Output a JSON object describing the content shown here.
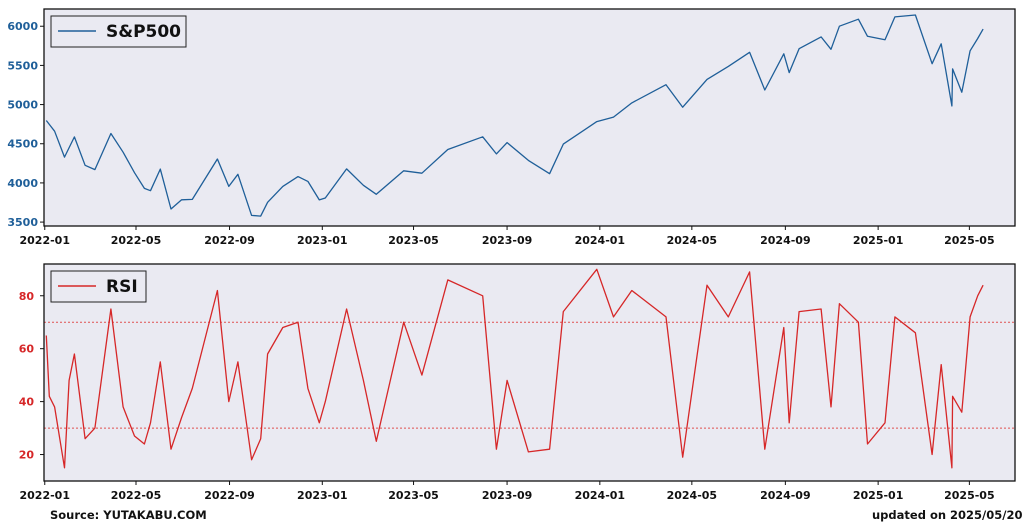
{
  "footer": {
    "source": "Source: YUTAKABU.COM",
    "updated": "updated on 2025/05/20"
  },
  "style": {
    "panel_bg": "#eaeaf2",
    "sp_color": "#1f5f99",
    "rsi_color": "#d62728",
    "threshold_color": "#e05050"
  },
  "chart_data": [
    {
      "type": "line",
      "x_start": "2021-12-31",
      "x_end": "2025-06-30",
      "x_ticks": [
        "2022-01",
        "2022-05",
        "2022-09",
        "2023-01",
        "2023-05",
        "2023-09",
        "2024-01",
        "2024-05",
        "2024-09",
        "2025-01",
        "2025-05"
      ],
      "ylim": [
        3450,
        6220
      ],
      "y_ticks": [
        3500,
        4000,
        4500,
        5000,
        5500,
        6000
      ],
      "legend_position": "top-left",
      "grid": false,
      "series": [
        {
          "name": "S&P500",
          "points": [
            [
              "2022-01-03",
              4797
            ],
            [
              "2022-01-14",
              4660
            ],
            [
              "2022-01-27",
              4330
            ],
            [
              "2022-02-09",
              4587
            ],
            [
              "2022-02-23",
              4225
            ],
            [
              "2022-03-08",
              4170
            ],
            [
              "2022-03-29",
              4631
            ],
            [
              "2022-04-14",
              4392
            ],
            [
              "2022-04-29",
              4131
            ],
            [
              "2022-05-12",
              3930
            ],
            [
              "2022-05-20",
              3901
            ],
            [
              "2022-06-02",
              4176
            ],
            [
              "2022-06-16",
              3667
            ],
            [
              "2022-06-30",
              3785
            ],
            [
              "2022-07-14",
              3790
            ],
            [
              "2022-08-16",
              4305
            ],
            [
              "2022-08-31",
              3955
            ],
            [
              "2022-09-12",
              4110
            ],
            [
              "2022-09-30",
              3585
            ],
            [
              "2022-10-12",
              3577
            ],
            [
              "2022-10-21",
              3752
            ],
            [
              "2022-11-10",
              3956
            ],
            [
              "2022-11-30",
              4080
            ],
            [
              "2022-12-13",
              4019
            ],
            [
              "2022-12-28",
              3783
            ],
            [
              "2023-01-05",
              3808
            ],
            [
              "2023-02-02",
              4179
            ],
            [
              "2023-02-24",
              3970
            ],
            [
              "2023-03-13",
              3855
            ],
            [
              "2023-04-18",
              4154
            ],
            [
              "2023-05-12",
              4124
            ],
            [
              "2023-06-15",
              4426
            ],
            [
              "2023-07-31",
              4589
            ],
            [
              "2023-08-18",
              4370
            ],
            [
              "2023-09-01",
              4515
            ],
            [
              "2023-09-29",
              4288
            ],
            [
              "2023-10-27",
              4117
            ],
            [
              "2023-11-14",
              4495
            ],
            [
              "2023-12-28",
              4783
            ],
            [
              "2024-01-19",
              4840
            ],
            [
              "2024-02-12",
              5021
            ],
            [
              "2024-03-28",
              5254
            ],
            [
              "2024-04-19",
              4967
            ],
            [
              "2024-05-21",
              5321
            ],
            [
              "2024-06-18",
              5487
            ],
            [
              "2024-07-16",
              5667
            ],
            [
              "2024-08-05",
              5186
            ],
            [
              "2024-08-30",
              5648
            ],
            [
              "2024-09-06",
              5408
            ],
            [
              "2024-09-19",
              5713
            ],
            [
              "2024-10-18",
              5864
            ],
            [
              "2024-10-31",
              5705
            ],
            [
              "2024-11-11",
              6001
            ],
            [
              "2024-12-06",
              6090
            ],
            [
              "2024-12-18",
              5872
            ],
            [
              "2025-01-10",
              5827
            ],
            [
              "2025-01-23",
              6119
            ],
            [
              "2025-02-19",
              6144
            ],
            [
              "2025-03-13",
              5522
            ],
            [
              "2025-03-25",
              5776
            ],
            [
              "2025-04-08",
              4982
            ],
            [
              "2025-04-09",
              5456
            ],
            [
              "2025-04-21",
              5158
            ],
            [
              "2025-05-02",
              5687
            ],
            [
              "2025-05-12",
              5844
            ],
            [
              "2025-05-19",
              5963
            ]
          ]
        }
      ]
    },
    {
      "type": "line",
      "x_start": "2021-12-31",
      "x_end": "2025-06-30",
      "x_ticks": [
        "2022-01",
        "2022-05",
        "2022-09",
        "2023-01",
        "2023-05",
        "2023-09",
        "2024-01",
        "2024-05",
        "2024-09",
        "2025-01",
        "2025-05"
      ],
      "ylim": [
        10,
        92
      ],
      "y_ticks": [
        20,
        40,
        60,
        80
      ],
      "thresholds": [
        70,
        30
      ],
      "legend_position": "top-left",
      "grid": false,
      "series": [
        {
          "name": "RSI",
          "points": [
            [
              "2022-01-03",
              65
            ],
            [
              "2022-01-07",
              42
            ],
            [
              "2022-01-14",
              38
            ],
            [
              "2022-01-27",
              15
            ],
            [
              "2022-02-02",
              48
            ],
            [
              "2022-02-09",
              58
            ],
            [
              "2022-02-23",
              26
            ],
            [
              "2022-03-08",
              30
            ],
            [
              "2022-03-29",
              75
            ],
            [
              "2022-04-14",
              38
            ],
            [
              "2022-04-29",
              27
            ],
            [
              "2022-05-12",
              24
            ],
            [
              "2022-05-20",
              32
            ],
            [
              "2022-06-02",
              55
            ],
            [
              "2022-06-16",
              22
            ],
            [
              "2022-06-30",
              34
            ],
            [
              "2022-07-14",
              45
            ],
            [
              "2022-08-16",
              82
            ],
            [
              "2022-08-31",
              40
            ],
            [
              "2022-09-12",
              55
            ],
            [
              "2022-09-30",
              18
            ],
            [
              "2022-10-12",
              26
            ],
            [
              "2022-10-21",
              58
            ],
            [
              "2022-11-10",
              68
            ],
            [
              "2022-11-30",
              70
            ],
            [
              "2022-12-13",
              45
            ],
            [
              "2022-12-28",
              32
            ],
            [
              "2023-01-05",
              40
            ],
            [
              "2023-02-02",
              75
            ],
            [
              "2023-02-24",
              48
            ],
            [
              "2023-03-13",
              25
            ],
            [
              "2023-04-18",
              70
            ],
            [
              "2023-05-12",
              50
            ],
            [
              "2023-06-15",
              86
            ],
            [
              "2023-07-31",
              80
            ],
            [
              "2023-08-18",
              22
            ],
            [
              "2023-09-01",
              48
            ],
            [
              "2023-09-29",
              21
            ],
            [
              "2023-10-27",
              22
            ],
            [
              "2023-11-14",
              74
            ],
            [
              "2023-12-28",
              90
            ],
            [
              "2024-01-19",
              72
            ],
            [
              "2024-02-12",
              82
            ],
            [
              "2024-03-28",
              72
            ],
            [
              "2024-04-19",
              19
            ],
            [
              "2024-05-21",
              84
            ],
            [
              "2024-06-18",
              72
            ],
            [
              "2024-07-16",
              89
            ],
            [
              "2024-08-05",
              22
            ],
            [
              "2024-08-30",
              68
            ],
            [
              "2024-09-06",
              32
            ],
            [
              "2024-09-19",
              74
            ],
            [
              "2024-10-18",
              75
            ],
            [
              "2024-10-31",
              38
            ],
            [
              "2024-11-11",
              77
            ],
            [
              "2024-12-06",
              70
            ],
            [
              "2024-12-18",
              24
            ],
            [
              "2025-01-10",
              32
            ],
            [
              "2025-01-23",
              72
            ],
            [
              "2025-02-19",
              66
            ],
            [
              "2025-03-13",
              20
            ],
            [
              "2025-03-25",
              54
            ],
            [
              "2025-04-08",
              15
            ],
            [
              "2025-04-09",
              42
            ],
            [
              "2025-04-21",
              36
            ],
            [
              "2025-05-02",
              72
            ],
            [
              "2025-05-12",
              80
            ],
            [
              "2025-05-19",
              84
            ]
          ]
        }
      ]
    }
  ]
}
